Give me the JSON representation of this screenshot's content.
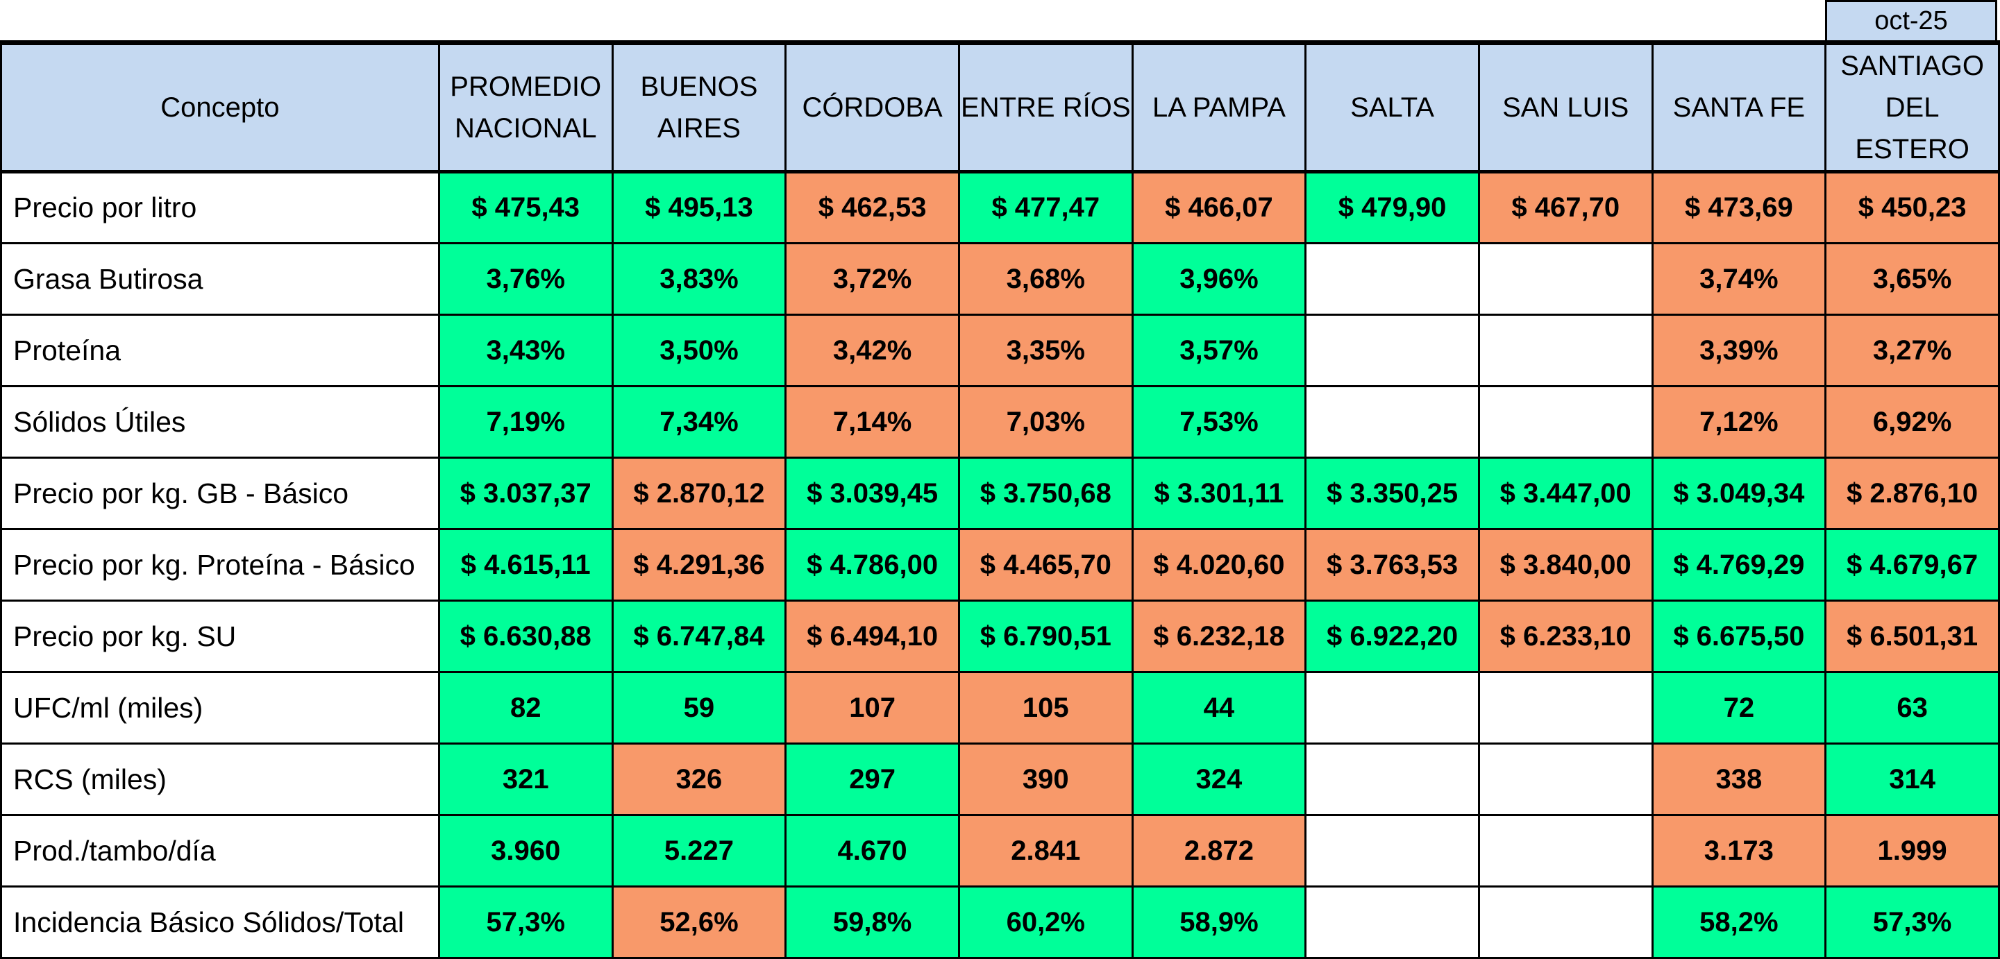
{
  "period": "oct-25",
  "colors": {
    "favorable": "#00ff99",
    "unfavorable": "#f8996a",
    "header": "#c5d9f1"
  },
  "columns": [
    {
      "id": "concepto",
      "lines": [
        "Concepto"
      ]
    },
    {
      "id": "nacional",
      "lines": [
        "PROMEDIO",
        "NACIONAL"
      ]
    },
    {
      "id": "buenos-aires",
      "lines": [
        "BUENOS",
        "AIRES"
      ]
    },
    {
      "id": "cordoba",
      "lines": [
        "CÓRDOBA"
      ]
    },
    {
      "id": "entre-rios",
      "lines": [
        "ENTRE RÍOS"
      ]
    },
    {
      "id": "la-pampa",
      "lines": [
        "LA PAMPA"
      ]
    },
    {
      "id": "salta",
      "lines": [
        "SALTA"
      ]
    },
    {
      "id": "san-luis",
      "lines": [
        "SAN LUIS"
      ]
    },
    {
      "id": "santa-fe",
      "lines": [
        "SANTA FE"
      ]
    },
    {
      "id": "santiago",
      "lines": [
        "SANTIAGO",
        "DEL ESTERO"
      ]
    }
  ],
  "rows": [
    {
      "concept": "Precio por litro",
      "cells": [
        {
          "v": "$ 475,43",
          "c": "g"
        },
        {
          "v": "$ 495,13",
          "c": "g"
        },
        {
          "v": "$ 462,53",
          "c": "o"
        },
        {
          "v": "$ 477,47",
          "c": "g"
        },
        {
          "v": "$ 466,07",
          "c": "o"
        },
        {
          "v": "$ 479,90",
          "c": "g"
        },
        {
          "v": "$ 467,70",
          "c": "o"
        },
        {
          "v": "$ 473,69",
          "c": "o"
        },
        {
          "v": "$ 450,23",
          "c": "o"
        }
      ]
    },
    {
      "concept": "Grasa Butirosa",
      "cells": [
        {
          "v": "3,76%",
          "c": "g"
        },
        {
          "v": "3,83%",
          "c": "g"
        },
        {
          "v": "3,72%",
          "c": "o"
        },
        {
          "v": "3,68%",
          "c": "o"
        },
        {
          "v": "3,96%",
          "c": "g"
        },
        {
          "v": "",
          "c": "e"
        },
        {
          "v": "",
          "c": "e"
        },
        {
          "v": "3,74%",
          "c": "o"
        },
        {
          "v": "3,65%",
          "c": "o"
        }
      ]
    },
    {
      "concept": "Proteína",
      "cells": [
        {
          "v": "3,43%",
          "c": "g"
        },
        {
          "v": "3,50%",
          "c": "g"
        },
        {
          "v": "3,42%",
          "c": "o"
        },
        {
          "v": "3,35%",
          "c": "o"
        },
        {
          "v": "3,57%",
          "c": "g"
        },
        {
          "v": "",
          "c": "e"
        },
        {
          "v": "",
          "c": "e"
        },
        {
          "v": "3,39%",
          "c": "o"
        },
        {
          "v": "3,27%",
          "c": "o"
        }
      ]
    },
    {
      "concept": "Sólidos Útiles",
      "cells": [
        {
          "v": "7,19%",
          "c": "g"
        },
        {
          "v": "7,34%",
          "c": "g"
        },
        {
          "v": "7,14%",
          "c": "o"
        },
        {
          "v": "7,03%",
          "c": "o"
        },
        {
          "v": "7,53%",
          "c": "g"
        },
        {
          "v": "",
          "c": "e"
        },
        {
          "v": "",
          "c": "e"
        },
        {
          "v": "7,12%",
          "c": "o"
        },
        {
          "v": "6,92%",
          "c": "o"
        }
      ]
    },
    {
      "concept": "Precio por kg. GB - Básico",
      "cells": [
        {
          "v": "$ 3.037,37",
          "c": "g"
        },
        {
          "v": "$ 2.870,12",
          "c": "o"
        },
        {
          "v": "$ 3.039,45",
          "c": "g"
        },
        {
          "v": "$ 3.750,68",
          "c": "g"
        },
        {
          "v": "$ 3.301,11",
          "c": "g"
        },
        {
          "v": "$ 3.350,25",
          "c": "g"
        },
        {
          "v": "$ 3.447,00",
          "c": "g"
        },
        {
          "v": "$ 3.049,34",
          "c": "g"
        },
        {
          "v": "$ 2.876,10",
          "c": "o"
        }
      ]
    },
    {
      "concept": "Precio por kg. Proteína - Básico",
      "cells": [
        {
          "v": "$ 4.615,11",
          "c": "g"
        },
        {
          "v": "$ 4.291,36",
          "c": "o"
        },
        {
          "v": "$ 4.786,00",
          "c": "g"
        },
        {
          "v": "$ 4.465,70",
          "c": "o"
        },
        {
          "v": "$ 4.020,60",
          "c": "o"
        },
        {
          "v": "$ 3.763,53",
          "c": "o"
        },
        {
          "v": "$ 3.840,00",
          "c": "o"
        },
        {
          "v": "$ 4.769,29",
          "c": "g"
        },
        {
          "v": "$ 4.679,67",
          "c": "g"
        }
      ]
    },
    {
      "concept": "Precio por kg. SU",
      "cells": [
        {
          "v": "$ 6.630,88",
          "c": "g"
        },
        {
          "v": "$ 6.747,84",
          "c": "g"
        },
        {
          "v": "$ 6.494,10",
          "c": "o"
        },
        {
          "v": "$ 6.790,51",
          "c": "g"
        },
        {
          "v": "$ 6.232,18",
          "c": "o"
        },
        {
          "v": "$ 6.922,20",
          "c": "g"
        },
        {
          "v": "$ 6.233,10",
          "c": "o"
        },
        {
          "v": "$ 6.675,50",
          "c": "g"
        },
        {
          "v": "$ 6.501,31",
          "c": "o"
        }
      ]
    },
    {
      "concept": "UFC/ml (miles)",
      "cells": [
        {
          "v": "82",
          "c": "g"
        },
        {
          "v": "59",
          "c": "g"
        },
        {
          "v": "107",
          "c": "o"
        },
        {
          "v": "105",
          "c": "o"
        },
        {
          "v": "44",
          "c": "g"
        },
        {
          "v": "",
          "c": "e"
        },
        {
          "v": "",
          "c": "e"
        },
        {
          "v": "72",
          "c": "g"
        },
        {
          "v": "63",
          "c": "g"
        }
      ]
    },
    {
      "concept": "RCS (miles)",
      "cells": [
        {
          "v": "321",
          "c": "g"
        },
        {
          "v": "326",
          "c": "o"
        },
        {
          "v": "297",
          "c": "g"
        },
        {
          "v": "390",
          "c": "o"
        },
        {
          "v": "324",
          "c": "g"
        },
        {
          "v": "",
          "c": "e"
        },
        {
          "v": "",
          "c": "e"
        },
        {
          "v": "338",
          "c": "o"
        },
        {
          "v": "314",
          "c": "g"
        }
      ]
    },
    {
      "concept": "Prod./tambo/día",
      "cells": [
        {
          "v": "3.960",
          "c": "g"
        },
        {
          "v": "5.227",
          "c": "g"
        },
        {
          "v": "4.670",
          "c": "g"
        },
        {
          "v": "2.841",
          "c": "o"
        },
        {
          "v": "2.872",
          "c": "o"
        },
        {
          "v": "",
          "c": "e"
        },
        {
          "v": "",
          "c": "e"
        },
        {
          "v": "3.173",
          "c": "o"
        },
        {
          "v": "1.999",
          "c": "o"
        }
      ]
    },
    {
      "concept": "Incidencia Básico Sólidos/Total",
      "cells": [
        {
          "v": "57,3%",
          "c": "g"
        },
        {
          "v": "52,6%",
          "c": "o"
        },
        {
          "v": "59,8%",
          "c": "g"
        },
        {
          "v": "60,2%",
          "c": "g"
        },
        {
          "v": "58,9%",
          "c": "g"
        },
        {
          "v": "",
          "c": "e"
        },
        {
          "v": "",
          "c": "e"
        },
        {
          "v": "58,2%",
          "c": "g"
        },
        {
          "v": "57,3%",
          "c": "g"
        }
      ]
    }
  ]
}
